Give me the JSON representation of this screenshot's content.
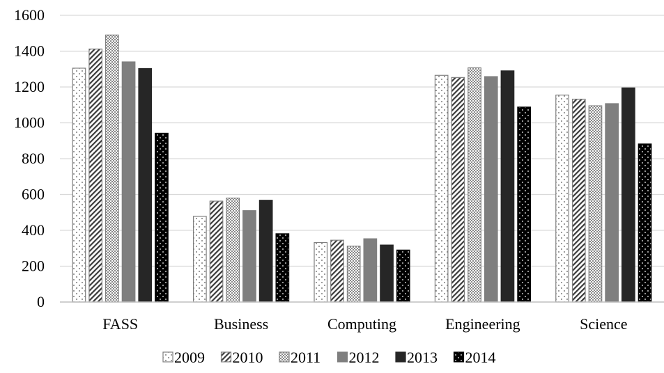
{
  "chart_data": {
    "type": "bar",
    "title": "",
    "xlabel": "",
    "ylabel": "",
    "categories": [
      "FASS",
      "Business",
      "Computing",
      "Engineering",
      "Science"
    ],
    "ylim": [
      0,
      1600
    ],
    "yticks": [
      0,
      200,
      400,
      600,
      800,
      1000,
      1200,
      1400,
      1600
    ],
    "grid": true,
    "legend_position": "bottom",
    "series": [
      {
        "name": "2009",
        "pattern": "dots-sparse",
        "color": "#ffffff",
        "values": [
          1305,
          478,
          332,
          1265,
          1155
        ]
      },
      {
        "name": "2010",
        "pattern": "diagonal-stripes",
        "color": "#ffffff",
        "values": [
          1412,
          563,
          345,
          1253,
          1132
        ]
      },
      {
        "name": "2011",
        "pattern": "checker-fine",
        "color": "#cfcfcf",
        "values": [
          1490,
          580,
          312,
          1307,
          1095
        ]
      },
      {
        "name": "2012",
        "pattern": "solid",
        "color": "#7f7f7f",
        "values": [
          1340,
          510,
          353,
          1258,
          1107
        ]
      },
      {
        "name": "2013",
        "pattern": "solid",
        "color": "#262626",
        "values": [
          1303,
          568,
          318,
          1290,
          1195
        ]
      },
      {
        "name": "2014",
        "pattern": "dots-on-black",
        "color": "#000000",
        "values": [
          942,
          381,
          290,
          1088,
          882
        ]
      }
    ]
  }
}
